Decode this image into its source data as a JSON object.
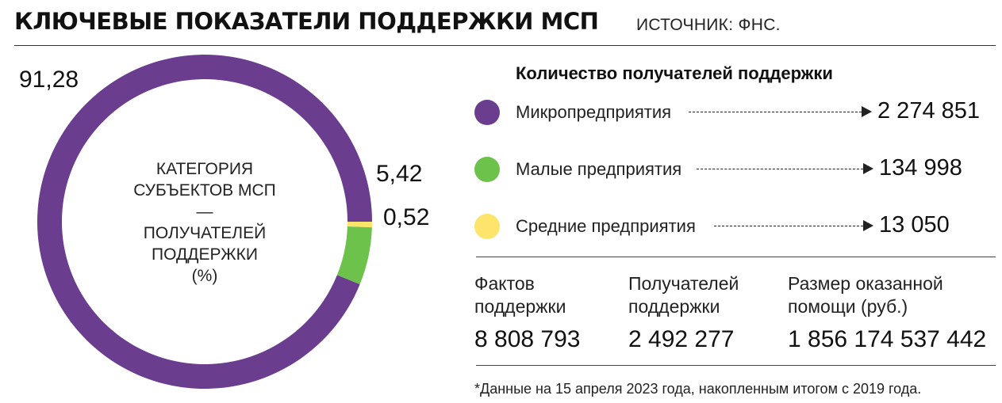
{
  "header": {
    "title": "КЛЮЧЕВЫЕ ПОКАЗАТЕЛИ ПОДДЕРЖКИ МСП",
    "source": "ИСТОЧНИК: ФНС."
  },
  "chart_data": {
    "type": "pie",
    "donut": true,
    "center_label": [
      "КАТЕГОРИЯ",
      "СУБЪЕКТОВ МСП",
      "—",
      "ПОЛУЧАТЕЛЕЙ",
      "ПОДДЕРЖКИ",
      "(%)"
    ],
    "slices": [
      {
        "value": 91.28,
        "label": "91,28",
        "color": "#6a3d8f"
      },
      {
        "value": 5.42,
        "label": "5,42",
        "color": "#6cc24a"
      },
      {
        "value": 0.52,
        "label": "0,52",
        "color": "#fde46a"
      }
    ]
  },
  "legend": {
    "title": "Количество получателей поддержки",
    "items": [
      {
        "label": "Микропредприятия",
        "value": "2 274 851",
        "color": "#6a3d8f"
      },
      {
        "label": "Малые предприятия",
        "value": "134 998",
        "color": "#6cc24a"
      },
      {
        "label": "Средние предприятия",
        "value": "13 050",
        "color": "#fde46a"
      }
    ]
  },
  "stats": [
    {
      "label_line1": "Фактов",
      "label_line2": "поддержки",
      "value": "8 808 793"
    },
    {
      "label_line1": "Получателей",
      "label_line2": "поддержки",
      "value": "2 492 277"
    },
    {
      "label_line1": "Размер оказанной",
      "label_line2": "помощи (руб.)",
      "value": "1 856 174 537 442"
    }
  ],
  "footnote": "*Данные на 15 апреля 2023 года, накопленным итогом с 2019 года."
}
